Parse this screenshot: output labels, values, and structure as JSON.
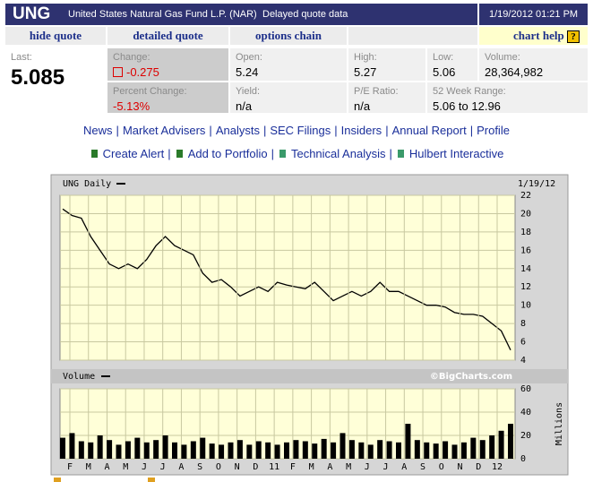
{
  "header": {
    "symbol": "UNG",
    "name": "United States Natural Gas Fund L.P. (NAR)",
    "delay": "Delayed quote data",
    "datetime": "1/19/2012 01:21 PM"
  },
  "tabs": [
    "hide quote",
    "detailed quote",
    "options chain",
    "chart help"
  ],
  "help_icon": "?",
  "quote": {
    "last": {
      "label": "Last:",
      "value": "5.085"
    },
    "change": {
      "label": "Change:",
      "value": "-0.275"
    },
    "percent_change": {
      "label": "Percent Change:",
      "value": "-5.13%"
    },
    "open": {
      "label": "Open:",
      "value": "5.24"
    },
    "high": {
      "label": "High:",
      "value": "5.27"
    },
    "low": {
      "label": "Low:",
      "value": "5.06"
    },
    "volume": {
      "label": "Volume:",
      "value": "28,364,982"
    },
    "yield": {
      "label": "Yield:",
      "value": "n/a"
    },
    "pe": {
      "label": "P/E Ratio:",
      "value": "n/a"
    },
    "range": {
      "label": "52 Week Range:",
      "value": "5.06 to 12.96"
    }
  },
  "links": {
    "separator": "|",
    "row1": [
      "News",
      "Market Advisers",
      "Analysts",
      "SEC Filings",
      "Insiders",
      "Annual Report",
      "Profile"
    ],
    "row2": [
      "Create Alert",
      "Add to Portfolio",
      "Technical Analysis",
      "Hulbert Interactive"
    ]
  },
  "chart_data": [
    {
      "type": "line",
      "date": "1/19/12",
      "grid": true,
      "ylim": [
        4,
        22
      ],
      "yticks": [
        4,
        6,
        8,
        10,
        12,
        14,
        16,
        18,
        20,
        22
      ],
      "series": [
        {
          "name": "UNG Daily",
          "color": "#000000",
          "values": [
            20.5,
            19.8,
            19.5,
            17.5,
            16,
            14.5,
            14,
            14.5,
            14,
            15,
            16.5,
            17.5,
            16.5,
            16,
            15.5,
            13.5,
            12.5,
            12.8,
            12,
            11,
            11.5,
            12,
            11.5,
            12.5,
            12.2,
            12,
            11.8,
            12.5,
            11.5,
            10.5,
            11,
            11.5,
            11,
            11.5,
            12.5,
            11.5,
            11.5,
            11,
            10.5,
            10,
            10,
            9.8,
            9.2,
            9,
            9,
            8.8,
            8,
            7.2,
            5.1
          ]
        }
      ]
    },
    {
      "type": "bar",
      "title": "Volume",
      "credit": "©BigCharts.com",
      "ylabel": "Millions",
      "color": "#000000",
      "grid": true,
      "ylim": [
        0,
        60
      ],
      "yticks": [
        0,
        20,
        40,
        60
      ],
      "xticks": [
        "F",
        "M",
        "A",
        "M",
        "J",
        "J",
        "A",
        "S",
        "O",
        "N",
        "D",
        "11",
        "F",
        "M",
        "A",
        "M",
        "J",
        "J",
        "A",
        "S",
        "O",
        "N",
        "D",
        "12"
      ],
      "values": [
        18,
        22,
        15,
        14,
        20,
        16,
        12,
        15,
        18,
        14,
        16,
        20,
        14,
        12,
        15,
        18,
        13,
        12,
        14,
        16,
        12,
        15,
        14,
        12,
        14,
        16,
        15,
        13,
        17,
        14,
        22,
        16,
        14,
        12,
        16,
        15,
        14,
        30,
        16,
        14,
        13,
        15,
        12,
        14,
        18,
        16,
        20,
        24,
        30
      ]
    }
  ]
}
